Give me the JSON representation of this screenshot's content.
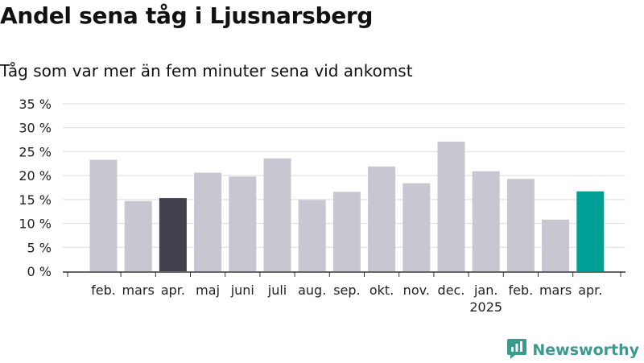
{
  "header": {
    "title": "Andel sena tåg i Ljusnarsberg",
    "subtitle": "Tåg som var mer än fem minuter sena vid ankomst"
  },
  "brand": {
    "name": "Newsworthy",
    "icon": "newsworthy-logo-icon",
    "color": "#3a9a8e"
  },
  "colors": {
    "default": "#c8c6d0",
    "highlight_dark": "#43414e",
    "highlight_teal": "#009e95",
    "grid": "#dddddd",
    "axis": "#333333"
  },
  "chart_data": {
    "type": "bar",
    "title": "Andel sena tåg i Ljusnarsberg",
    "subtitle": "Tåg som var mer än fem minuter sena vid ankomst",
    "xlabel": "",
    "ylabel": "",
    "ylim": [
      0,
      35
    ],
    "yticks": [
      0,
      5,
      10,
      15,
      20,
      25,
      30,
      35
    ],
    "ytick_labels": [
      "0 %",
      "5 %",
      "10 %",
      "15 %",
      "20 %",
      "25 %",
      "30 %",
      "35 %"
    ],
    "grid": true,
    "categories": [
      "feb.",
      "mars",
      "apr.",
      "maj",
      "juni",
      "juli",
      "aug.",
      "sep.",
      "okt.",
      "nov.",
      "dec.",
      "jan.",
      "feb.",
      "mars",
      "apr."
    ],
    "year_labels": [
      {
        "index": 11,
        "label": "2025"
      }
    ],
    "values": [
      23.3,
      14.7,
      15.3,
      20.6,
      19.8,
      23.6,
      14.9,
      16.6,
      21.9,
      18.4,
      27.1,
      20.9,
      19.3,
      10.8,
      16.7
    ],
    "highlight": {
      "2": "#43414e",
      "14": "#009e95"
    }
  }
}
